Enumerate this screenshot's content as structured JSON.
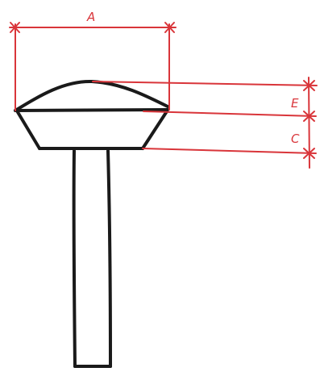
{
  "labels": {
    "a": "A",
    "e": "E",
    "c": "C"
  },
  "colors": {
    "ink": "#1a1a1a",
    "dimension": "#d9353a"
  }
}
